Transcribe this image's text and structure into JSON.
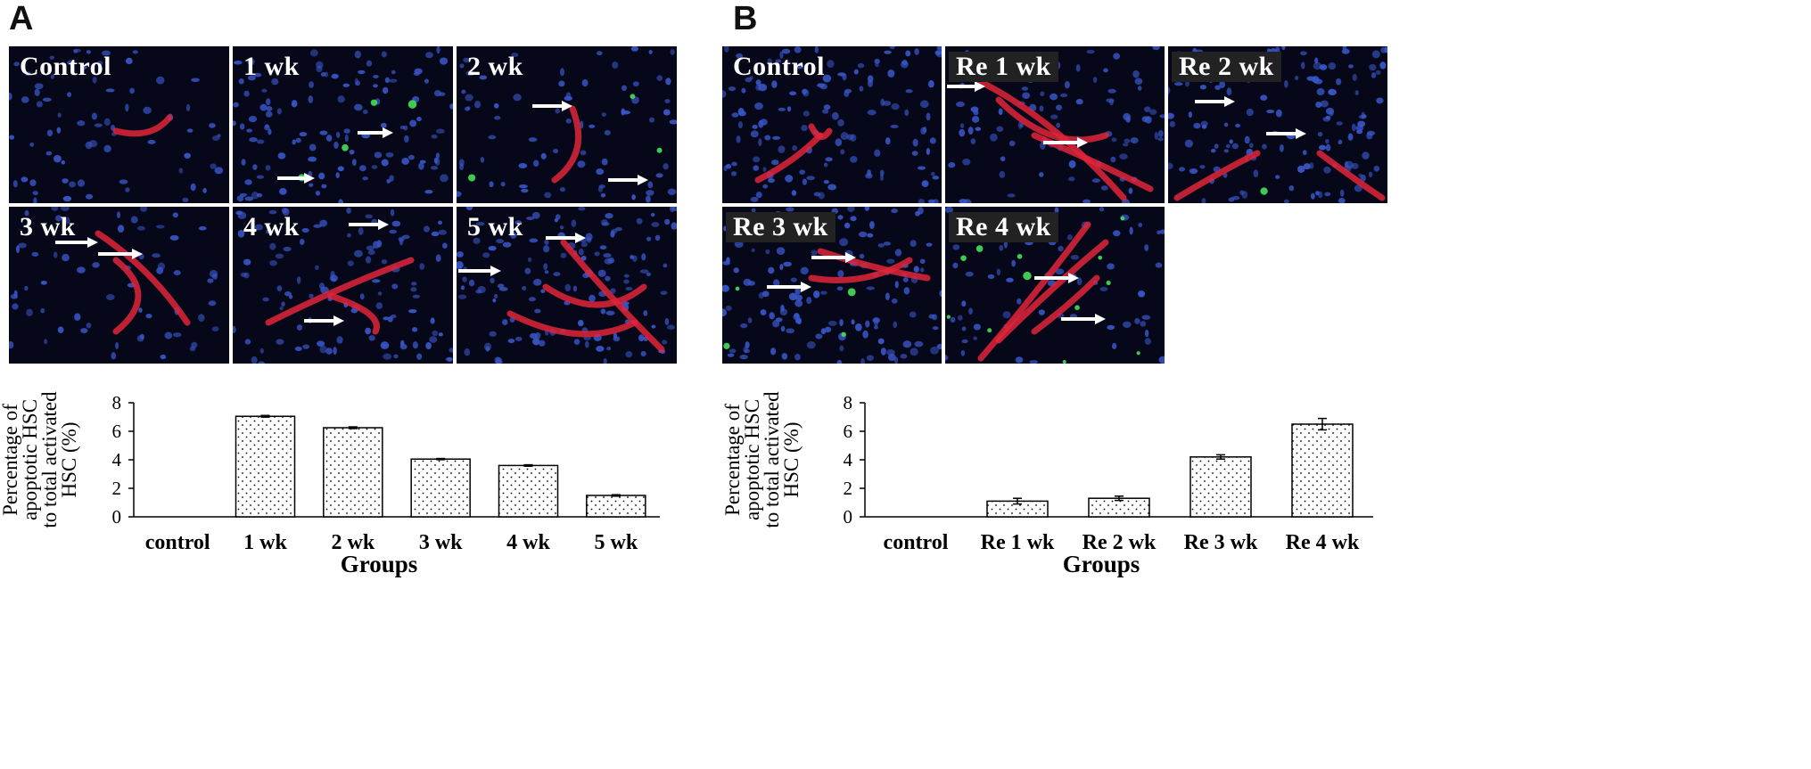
{
  "panels": [
    {
      "letter": "A",
      "tiles": [
        "Control",
        "1 wk",
        "2 wk",
        "3 wk",
        "4 wk",
        "5 wk"
      ]
    },
    {
      "letter": "B",
      "tiles": [
        "Control",
        "Re 1 wk",
        "Re 2 wk",
        "Re 3 wk",
        "Re 4 wk"
      ]
    }
  ],
  "chart_data": [
    {
      "type": "bar",
      "categories": [
        "control",
        "1 wk",
        "2 wk",
        "3 wk",
        "4 wk",
        "5 wk"
      ],
      "values": [
        0,
        7.05,
        6.25,
        4.05,
        3.6,
        1.5
      ],
      "errors": [
        0,
        0.06,
        0.06,
        0.04,
        0.05,
        0.05
      ],
      "ylabel_lines": [
        "Percentage of",
        "apoptotic HSC",
        "to total activated",
        "HSC (%)"
      ],
      "xlabel": "Groups",
      "ylim": [
        0,
        8
      ],
      "yticks": [
        "0",
        "2",
        "4",
        "6",
        "8"
      ],
      "pattern": "dotted",
      "grid": false
    },
    {
      "type": "bar",
      "categories": [
        "control",
        "Re 1 wk",
        "Re 2 wk",
        "Re 3 wk",
        "Re 4 wk"
      ],
      "values": [
        0,
        1.1,
        1.3,
        4.2,
        6.5
      ],
      "errors": [
        0,
        0.2,
        0.15,
        0.15,
        0.4
      ],
      "ylabel_lines": [
        "Percentage of",
        "apoptotic HSC",
        "to total activated",
        "HSC (%)"
      ],
      "xlabel": "Groups",
      "ylim": [
        0,
        8
      ],
      "yticks": [
        "0",
        "2",
        "4",
        "6",
        "8"
      ],
      "pattern": "dotted",
      "grid": false
    }
  ]
}
